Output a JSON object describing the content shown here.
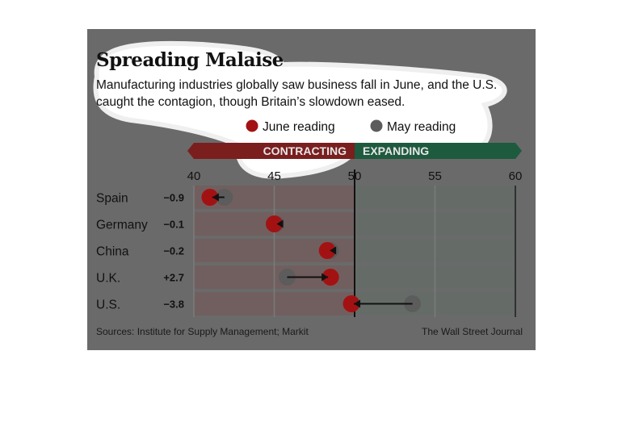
{
  "chart_data": {
    "type": "dot-change",
    "title": "Spreading Malaise",
    "subtitle": "Manufacturing industries globally saw business fall in June, and the U.S. caught the contagion, though Britain’s slowdown eased.",
    "legend": [
      {
        "name": "June reading",
        "color": "#a31212"
      },
      {
        "name": "May reading",
        "color": "#5c5c5c"
      }
    ],
    "zones": [
      {
        "label": "CONTRACTING",
        "range": [
          40,
          50
        ],
        "color": "#7a1e1e"
      },
      {
        "label": "EXPANDING",
        "range": [
          50,
          60
        ],
        "color": "#1e5a3e"
      }
    ],
    "xlim": [
      40,
      60
    ],
    "xticks": [
      40,
      45,
      50,
      55,
      60
    ],
    "reference_line": 50,
    "rows": [
      {
        "country": "Spain",
        "change": "−0.9",
        "may": 41.9,
        "june": 41.0
      },
      {
        "country": "Germany",
        "change": "−0.1",
        "may": 45.1,
        "june": 45.0
      },
      {
        "country": "China",
        "change": "−0.2",
        "may": 48.5,
        "june": 48.3
      },
      {
        "country": "U.K.",
        "change": "+2.7",
        "may": 45.8,
        "june": 48.5
      },
      {
        "country": "U.S.",
        "change": "−3.8",
        "may": 53.6,
        "june": 49.8
      }
    ]
  },
  "footer": {
    "source": "Sources: Institute for Supply Management; Markit",
    "brand": "The Wall Street Journal"
  }
}
